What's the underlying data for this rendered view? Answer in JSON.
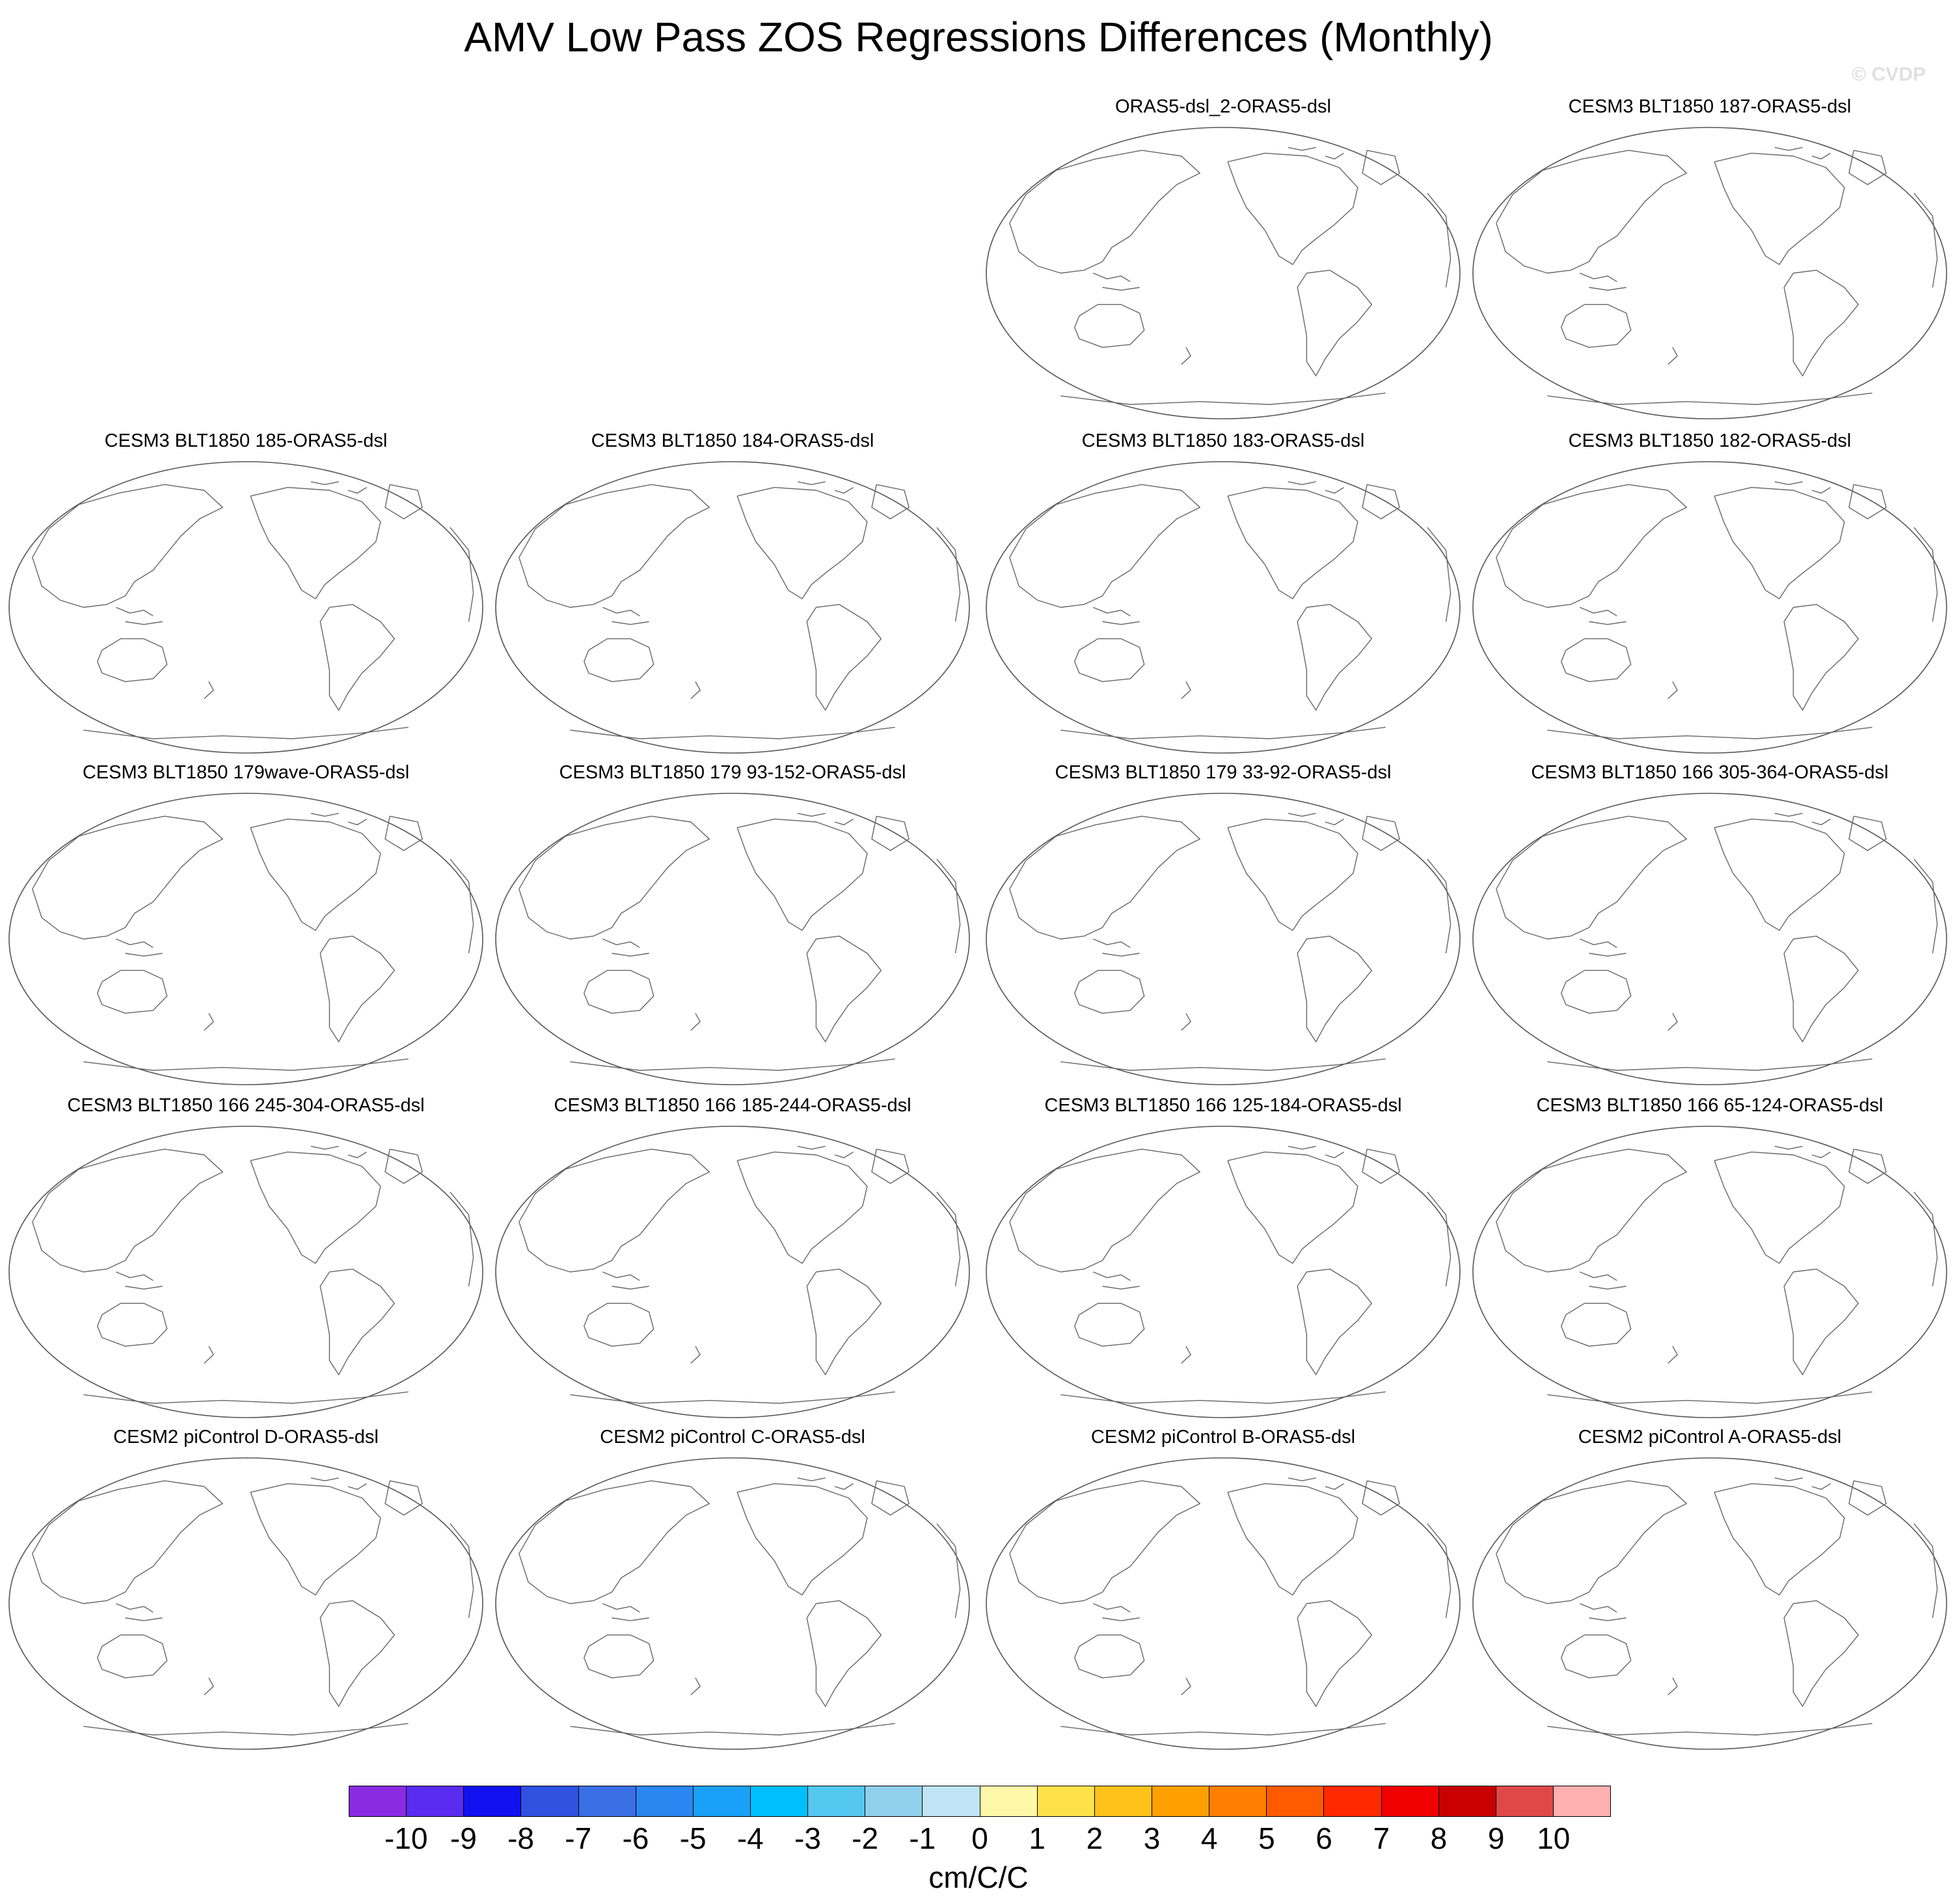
{
  "title": "AMV Low Pass ZOS Regressions Differences (Monthly)",
  "watermark": "© CVDP",
  "panels": [
    {
      "title": "ORAS5-dsl_2-ORAS5-dsl"
    },
    {
      "title": "CESM3 BLT1850 187-ORAS5-dsl"
    },
    {
      "title": "CESM3 BLT1850 185-ORAS5-dsl"
    },
    {
      "title": "CESM3 BLT1850 184-ORAS5-dsl"
    },
    {
      "title": "CESM3 BLT1850 183-ORAS5-dsl"
    },
    {
      "title": "CESM3 BLT1850 182-ORAS5-dsl"
    },
    {
      "title": "CESM3 BLT1850 179wave-ORAS5-dsl"
    },
    {
      "title": "CESM3 BLT1850 179 93-152-ORAS5-dsl"
    },
    {
      "title": "CESM3 BLT1850 179 33-92-ORAS5-dsl"
    },
    {
      "title": "CESM3 BLT1850 166 305-364-ORAS5-dsl"
    },
    {
      "title": "CESM3 BLT1850 166 245-304-ORAS5-dsl"
    },
    {
      "title": "CESM3 BLT1850 166 185-244-ORAS5-dsl"
    },
    {
      "title": "CESM3 BLT1850 166 125-184-ORAS5-dsl"
    },
    {
      "title": "CESM3 BLT1850 166 65-124-ORAS5-dsl"
    },
    {
      "title": "CESM2 piControl D-ORAS5-dsl"
    },
    {
      "title": "CESM2 piControl C-ORAS5-dsl"
    },
    {
      "title": "CESM2 piControl B-ORAS5-dsl"
    },
    {
      "title": "CESM2 piControl A-ORAS5-dsl"
    }
  ],
  "colorbar": {
    "colors": [
      "#8a2be2",
      "#5a2bf0",
      "#1010f0",
      "#3050e0",
      "#3a6fe6",
      "#2a86f0",
      "#1aa0f6",
      "#00bfff",
      "#55c8f0",
      "#90d0ec",
      "#bfe4f4",
      "#fff8a8",
      "#ffe24a",
      "#ffc21a",
      "#ffa000",
      "#ff8000",
      "#ff5a00",
      "#ff2a00",
      "#f00000",
      "#c80000",
      "#e04848",
      "#ffb0b0"
    ],
    "ticks": [
      "-10",
      "-9",
      "-8",
      "-7",
      "-6",
      "-5",
      "-4",
      "-3",
      "-2",
      "-1",
      "0",
      "1",
      "2",
      "3",
      "4",
      "5",
      "6",
      "7",
      "8",
      "9",
      "10"
    ],
    "units": "cm/C/C"
  }
}
